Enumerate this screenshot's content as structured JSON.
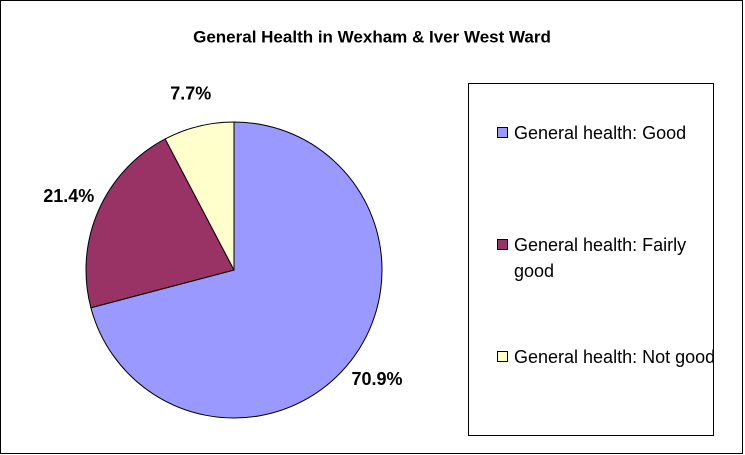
{
  "chart_data": {
    "type": "pie",
    "title": "General Health in Wexham & Iver West Ward",
    "categories": [
      "General health: Good",
      "General health: Fairly good",
      "General health: Not good"
    ],
    "values": [
      70.9,
      21.4,
      7.7
    ],
    "value_labels": [
      "70.9%",
      "21.4%",
      "7.7%"
    ],
    "colors": [
      "#9999ff",
      "#993366",
      "#ffffcc"
    ],
    "legend": "right"
  }
}
